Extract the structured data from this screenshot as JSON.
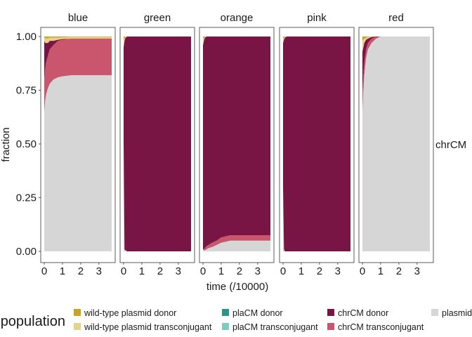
{
  "chart_data": {
    "type": "area",
    "stacked": true,
    "facets": [
      "blue",
      "green",
      "orange",
      "pink",
      "red"
    ],
    "side_label": "chrCM",
    "xlabel": "time (/10000)",
    "ylabel": "fraction",
    "xlim": [
      0,
      3.7
    ],
    "ylim": [
      0,
      1
    ],
    "x_ticks": [
      "0",
      "1",
      "2",
      "3"
    ],
    "y_ticks": [
      "0.00",
      "0.25",
      "0.50",
      "0.75",
      "1.00"
    ],
    "grid": false,
    "legend": {
      "title": "population",
      "placement": "bottom",
      "items": [
        {
          "key": "wt_donor",
          "label": "wild-type plasmid donor",
          "color": "#c9a227"
        },
        {
          "key": "wt_trans",
          "label": "wild-type plasmid transconjugant",
          "color": "#e5d38a"
        },
        {
          "key": "pla_donor",
          "label": "plaCM donor",
          "color": "#2e9485"
        },
        {
          "key": "pla_trans",
          "label": "plaCM transconjugant",
          "color": "#7fcbc0"
        },
        {
          "key": "chr_donor",
          "label": "chrCM donor",
          "color": "#781545"
        },
        {
          "key": "chr_trans",
          "label": "chrCM transconjugant",
          "color": "#c9566c"
        },
        {
          "key": "plasmid_free",
          "label": "plasmid-free",
          "color": "#d6d6d6"
        }
      ]
    },
    "x": [
      0,
      0.05,
      0.1,
      0.2,
      0.3,
      0.5,
      0.75,
      1.0,
      1.5,
      2.0,
      2.5,
      3.0,
      3.7
    ],
    "series_by_facet": {
      "blue": {
        "plasmid_free": [
          0.65,
          0.7,
          0.73,
          0.76,
          0.78,
          0.8,
          0.81,
          0.815,
          0.82,
          0.82,
          0.82,
          0.82,
          0.82
        ],
        "chr_trans": [
          0.15,
          0.15,
          0.15,
          0.15,
          0.16,
          0.16,
          0.17,
          0.17,
          0.17,
          0.17,
          0.17,
          0.17,
          0.17
        ],
        "chr_donor": [
          0.18,
          0.12,
          0.09,
          0.06,
          0.04,
          0.02,
          0.005,
          0.003,
          0.0,
          0.0,
          0.0,
          0.0,
          0.0
        ],
        "wt_trans": [
          0.015,
          0.022,
          0.022,
          0.022,
          0.015,
          0.015,
          0.01,
          0.008,
          0.008,
          0.008,
          0.008,
          0.008,
          0.008
        ],
        "wt_donor": [
          0.005,
          0.008,
          0.008,
          0.008,
          0.005,
          0.005,
          0.005,
          0.004,
          0.002,
          0.002,
          0.002,
          0.002,
          0.002
        ]
      },
      "green": {
        "plasmid_free": [
          0.5,
          0.01,
          0.005,
          0.0,
          0.0,
          0.0,
          0.0,
          0.0,
          0.0,
          0.0,
          0.0,
          0.0,
          0.0
        ],
        "chr_trans": [
          0.0,
          0.0,
          0.0,
          0.0,
          0.0,
          0.0,
          0.0,
          0.0,
          0.0,
          0.0,
          0.0,
          0.0,
          0.0
        ],
        "chr_donor": [
          0.45,
          0.97,
          0.99,
          1.0,
          1.0,
          1.0,
          1.0,
          1.0,
          1.0,
          1.0,
          1.0,
          1.0,
          1.0
        ],
        "wt_trans": [
          0.03,
          0.015,
          0.005,
          0.0,
          0.0,
          0.0,
          0.0,
          0.0,
          0.0,
          0.0,
          0.0,
          0.0,
          0.0
        ],
        "wt_donor": [
          0.02,
          0.005,
          0.0,
          0.0,
          0.0,
          0.0,
          0.0,
          0.0,
          0.0,
          0.0,
          0.0,
          0.0,
          0.0
        ]
      },
      "orange": {
        "plasmid_free": [
          0.01,
          0.005,
          0.005,
          0.01,
          0.015,
          0.02,
          0.03,
          0.04,
          0.05,
          0.05,
          0.05,
          0.05,
          0.05
        ],
        "chr_trans": [
          0.0,
          0.005,
          0.01,
          0.015,
          0.015,
          0.02,
          0.02,
          0.025,
          0.025,
          0.025,
          0.025,
          0.025,
          0.025
        ],
        "chr_donor": [
          0.95,
          0.97,
          0.98,
          0.975,
          0.97,
          0.96,
          0.95,
          0.935,
          0.925,
          0.925,
          0.925,
          0.925,
          0.925
        ],
        "wt_trans": [
          0.03,
          0.015,
          0.005,
          0.0,
          0.0,
          0.0,
          0.0,
          0.0,
          0.0,
          0.0,
          0.0,
          0.0,
          0.0
        ],
        "wt_donor": [
          0.01,
          0.005,
          0.0,
          0.0,
          0.0,
          0.0,
          0.0,
          0.0,
          0.0,
          0.0,
          0.0,
          0.0,
          0.0
        ]
      },
      "pink": {
        "plasmid_free": [
          0.3,
          0.01,
          0.0,
          0.0,
          0.0,
          0.0,
          0.0,
          0.0,
          0.0,
          0.0,
          0.0,
          0.0,
          0.0
        ],
        "chr_trans": [
          0.0,
          0.0,
          0.0,
          0.0,
          0.0,
          0.0,
          0.0,
          0.0,
          0.0,
          0.0,
          0.0,
          0.0,
          0.0
        ],
        "chr_donor": [
          0.67,
          0.975,
          0.995,
          1.0,
          1.0,
          1.0,
          1.0,
          1.0,
          1.0,
          1.0,
          1.0,
          1.0,
          1.0
        ],
        "wt_trans": [
          0.02,
          0.01,
          0.005,
          0.0,
          0.0,
          0.0,
          0.0,
          0.0,
          0.0,
          0.0,
          0.0,
          0.0,
          0.0
        ],
        "wt_donor": [
          0.01,
          0.005,
          0.0,
          0.0,
          0.0,
          0.0,
          0.0,
          0.0,
          0.0,
          0.0,
          0.0,
          0.0,
          0.0
        ]
      },
      "red": {
        "plasmid_free": [
          0.65,
          0.75,
          0.82,
          0.9,
          0.94,
          0.97,
          0.99,
          1.0,
          1.0,
          1.0,
          1.0,
          1.0,
          1.0
        ],
        "chr_trans": [
          0.08,
          0.07,
          0.06,
          0.04,
          0.03,
          0.02,
          0.008,
          0.0,
          0.0,
          0.0,
          0.0,
          0.0,
          0.0
        ],
        "chr_donor": [
          0.2,
          0.13,
          0.09,
          0.045,
          0.02,
          0.008,
          0.002,
          0.0,
          0.0,
          0.0,
          0.0,
          0.0,
          0.0
        ],
        "wt_trans": [
          0.05,
          0.035,
          0.02,
          0.01,
          0.007,
          0.002,
          0.0,
          0.0,
          0.0,
          0.0,
          0.0,
          0.0,
          0.0
        ],
        "wt_donor": [
          0.02,
          0.015,
          0.01,
          0.005,
          0.003,
          0.0,
          0.0,
          0.0,
          0.0,
          0.0,
          0.0,
          0.0,
          0.0
        ]
      }
    }
  }
}
